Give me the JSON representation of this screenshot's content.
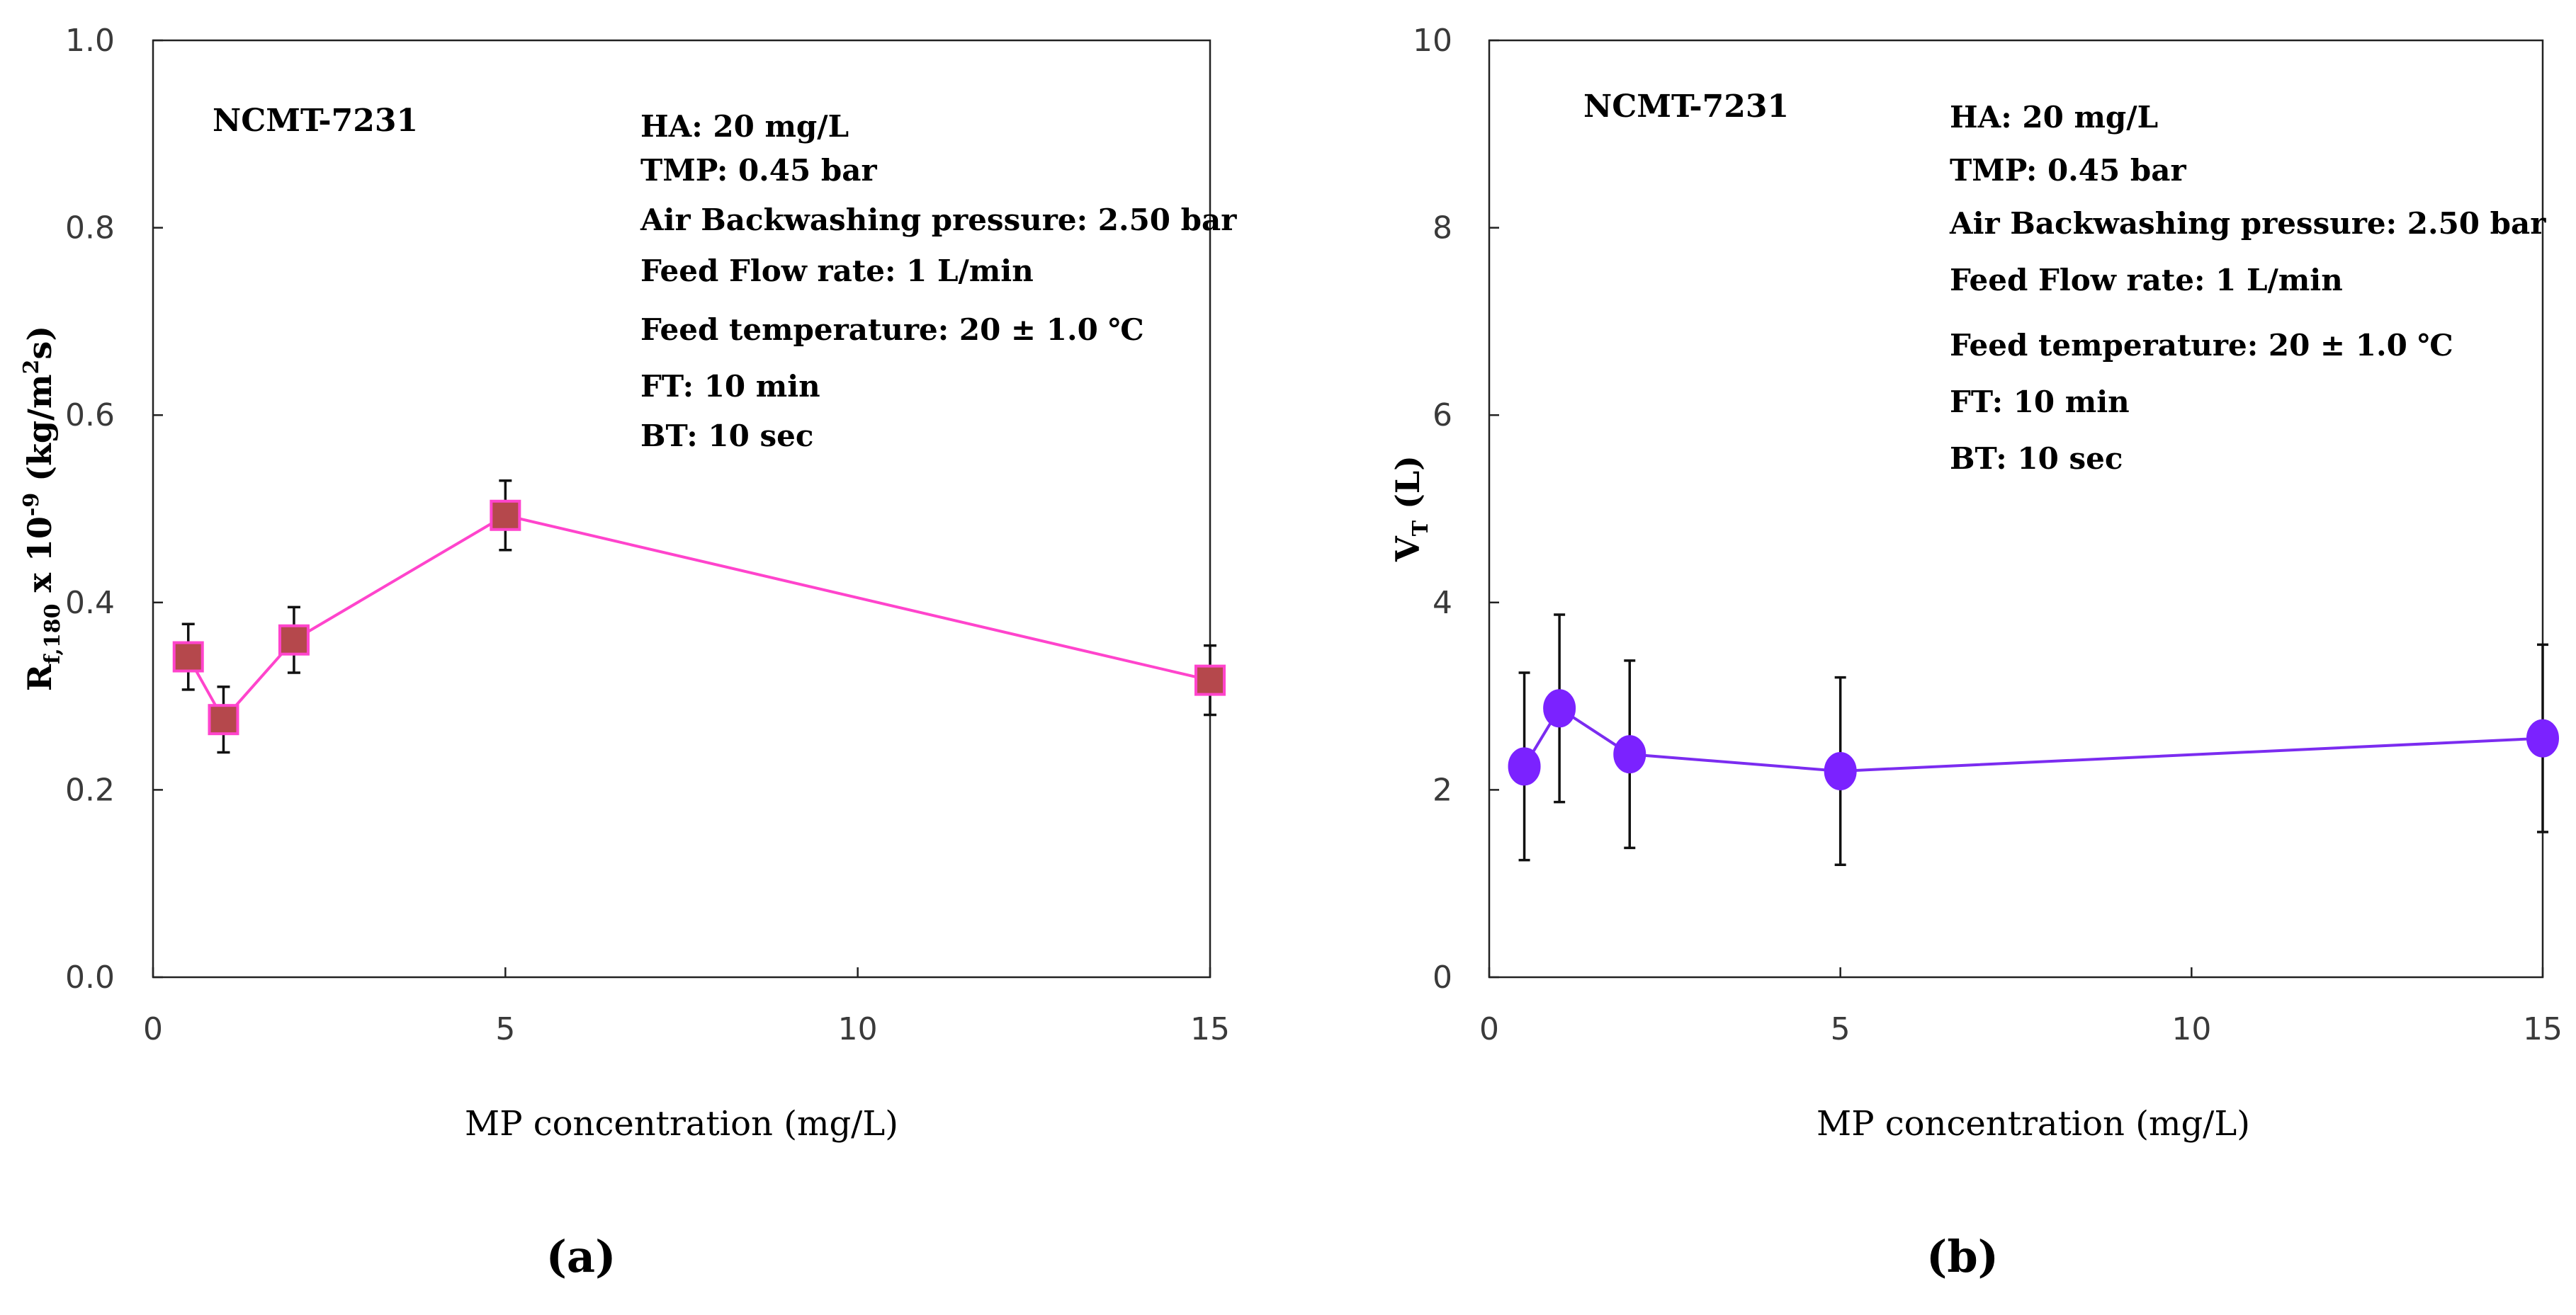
{
  "chart_data": [
    {
      "type": "scatter",
      "panel": "(a)",
      "marker": "square",
      "title": "NCMT-7231",
      "xlabel": "MP concentration (mg/L)",
      "ylabel_main": "R",
      "ylabel_sub": "f,180",
      "ylabel_mid": " x 10",
      "ylabel_sup": "-9",
      "ylabel_unit": " (kg/m",
      "ylabel_unit_sup": "2",
      "ylabel_unit_end": "s)",
      "xlim": [
        0,
        15
      ],
      "ylim": [
        0.0,
        1.0
      ],
      "xticks": [
        0,
        5,
        10,
        15
      ],
      "xtick_labels": [
        "0",
        "5",
        "10",
        "15"
      ],
      "yticks": [
        0.0,
        0.2,
        0.4,
        0.6,
        0.8,
        1.0
      ],
      "ytick_labels": [
        "0.0",
        "0.2",
        "0.4",
        "0.6",
        "0.8",
        "1.0"
      ],
      "line_color": "#ff44cc",
      "marker_color": "#b5484c",
      "marker_edge": "#ff44cc",
      "x": [
        0.5,
        1,
        2,
        5,
        15
      ],
      "y": [
        0.342,
        0.275,
        0.36,
        0.493,
        0.317
      ],
      "err": [
        0.035,
        0.035,
        0.035,
        0.037,
        0.037
      ],
      "conditions": [
        "HA: 20 mg/L",
        "TMP: 0.45 bar",
        "Air Backwashing pressure: 2.50 bar",
        "Feed Flow rate: 1 L/min",
        "Feed temperature: 20 ± 1.0 ℃",
        "FT: 10 min",
        "BT: 10 sec"
      ]
    },
    {
      "type": "scatter",
      "panel": "(b)",
      "marker": "circle",
      "title": "NCMT-7231",
      "xlabel": "MP concentration (mg/L)",
      "ylabel_main": "V",
      "ylabel_sub": "T",
      "ylabel_unit": " (L)",
      "xlim": [
        0,
        15
      ],
      "ylim": [
        0,
        10
      ],
      "xticks": [
        0,
        5,
        10,
        15
      ],
      "xtick_labels": [
        "0",
        "5",
        "10",
        "15"
      ],
      "yticks": [
        0,
        2,
        4,
        6,
        8,
        10
      ],
      "ytick_labels": [
        "0",
        "2",
        "4",
        "6",
        "8",
        "10"
      ],
      "line_color": "#7b2cf0",
      "marker_color": "#7b22ff",
      "marker_edge": "#7b22ff",
      "x": [
        0.5,
        1,
        2,
        5,
        15
      ],
      "y": [
        2.25,
        2.87,
        2.38,
        2.2,
        2.55
      ],
      "err": [
        1.0,
        1.0,
        1.0,
        1.0,
        1.0
      ],
      "conditions": [
        "HA: 20 mg/L",
        "TMP: 0.45 bar",
        "Air Backwashing pressure: 2.50 bar",
        "Feed Flow rate: 1 L/min",
        "Feed temperature: 20 ± 1.0 ℃",
        "FT: 10 min",
        "BT: 10 sec"
      ]
    }
  ]
}
